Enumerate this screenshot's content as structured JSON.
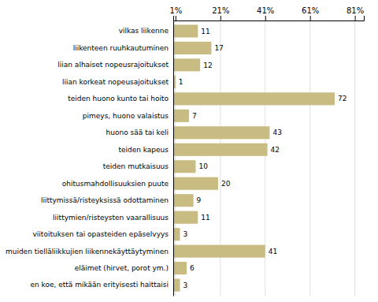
{
  "chart_data": {
    "type": "bar",
    "orientation": "horizontal",
    "categories": [
      "vilkas liikenne",
      "liikenteen ruuhkautuminen",
      "liian alhaiset nopeusrajoitukset",
      "liian korkeat nopeusajoitukset",
      "teiden huono kunto tai hoito",
      "pimeys, huono valaistus",
      "huono sää tai keli",
      "teiden kapeus",
      "teiden mutkaisuus",
      "ohitusmahdollisuuksien puute",
      "liittymissä/risteyksissä odottaminen",
      "liittymien/risteysten vaarallisuus",
      "viitoituksen tai opasteiden epäselvyys",
      "muiden tielläliikkujien liikennekäyttäytyminen",
      "eläimet (hirvet, porot ym.)",
      "en koe, että mikään erityisesti haittaisi"
    ],
    "values": [
      11,
      17,
      12,
      1,
      72,
      7,
      43,
      42,
      10,
      20,
      9,
      11,
      3,
      41,
      6,
      3
    ],
    "color": "#c8bc82",
    "xlim": [
      0,
      85
    ],
    "xticks": [
      {
        "value": 1,
        "label": "1%"
      },
      {
        "value": 21,
        "label": "21%"
      },
      {
        "value": 41,
        "label": "41%"
      },
      {
        "value": 61,
        "label": "61%"
      },
      {
        "value": 81,
        "label": "81%"
      }
    ],
    "grid": true,
    "data_labels": true
  }
}
